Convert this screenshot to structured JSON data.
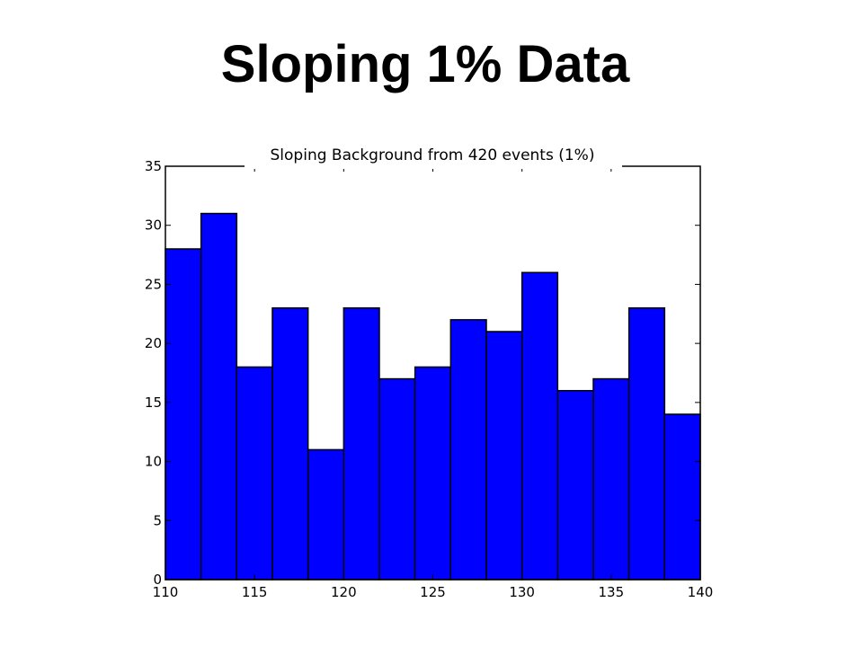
{
  "slide": {
    "title": "Sloping 1% Data"
  },
  "chart_data": {
    "type": "bar",
    "title": "Sloping Background from 420 events (1%)",
    "xlabel": "",
    "ylabel": "",
    "bin_edges": [
      110,
      112,
      114,
      116,
      118,
      120,
      122,
      124,
      126,
      128,
      130,
      132,
      134,
      136,
      138,
      140
    ],
    "values": [
      28,
      31,
      18,
      23,
      11,
      23,
      17,
      18,
      22,
      21,
      26,
      16,
      17,
      23,
      14
    ],
    "xlim": [
      110,
      140
    ],
    "ylim": [
      0,
      35
    ],
    "x_ticks": [
      110,
      115,
      120,
      125,
      130,
      135,
      140
    ],
    "y_ticks": [
      0,
      5,
      10,
      15,
      20,
      25,
      30,
      35
    ],
    "bar_color": "#0000ff",
    "edge_color": "#000000",
    "grid": false,
    "legend": "none"
  }
}
